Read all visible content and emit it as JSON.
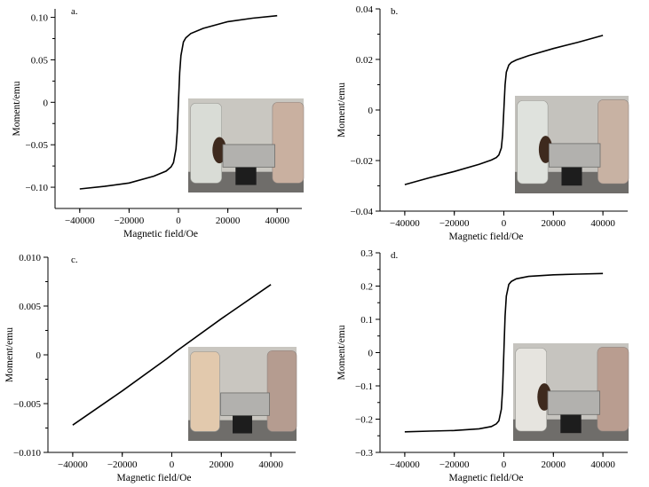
{
  "chart_data": [
    {
      "type": "line",
      "panel_label": "a.",
      "xlabel": "Magnetic field/Oe",
      "ylabel": "Moment/emu",
      "xlim": [
        -50000,
        50000
      ],
      "ylim": [
        -0.125,
        0.11
      ],
      "x_ticks": [
        -40000,
        -20000,
        0,
        20000,
        40000
      ],
      "x_tick_labels": [
        "−40000",
        "−20000",
        "0",
        "20000",
        "40000"
      ],
      "y_ticks": [
        -0.1,
        -0.05,
        0,
        0.05,
        0.1
      ],
      "y_tick_labels": [
        "−0.10",
        "−0.05",
        "0",
        "0.05",
        "0.10"
      ],
      "grid": false,
      "inset": "photo-vials-magnet",
      "series": [
        {
          "x": [
            -40000,
            -30000,
            -20000,
            -10000,
            -5000,
            -3000,
            -2000,
            -1000,
            -500,
            0,
            500,
            1000,
            2000,
            3000,
            5000,
            10000,
            20000,
            30000,
            40000
          ],
          "y": [
            -0.102,
            -0.099,
            -0.095,
            -0.087,
            -0.081,
            -0.076,
            -0.071,
            -0.055,
            -0.035,
            0.0,
            0.035,
            0.055,
            0.071,
            0.076,
            0.081,
            0.087,
            0.095,
            0.099,
            0.102
          ]
        }
      ]
    },
    {
      "type": "line",
      "panel_label": "b.",
      "xlabel": "Magnetic field/Oe",
      "ylabel": "Moment/emu",
      "xlim": [
        -50000,
        50000
      ],
      "ylim": [
        -0.04,
        0.04
      ],
      "x_ticks": [
        -40000,
        -20000,
        0,
        20000,
        40000
      ],
      "x_tick_labels": [
        "−40000",
        "−20000",
        "0",
        "20000",
        "40000"
      ],
      "y_ticks": [
        -0.04,
        -0.02,
        0,
        0.02,
        0.04
      ],
      "y_tick_labels": [
        "−0.04",
        "−0.02",
        "0",
        "0.02",
        "0.04"
      ],
      "grid": false,
      "inset": "photo-vials-magnet",
      "series": [
        {
          "x": [
            -40000,
            -30000,
            -20000,
            -10000,
            -5000,
            -3000,
            -2000,
            -1000,
            -500,
            0,
            500,
            1000,
            2000,
            3000,
            5000,
            10000,
            20000,
            30000,
            40000
          ],
          "y": [
            -0.0295,
            -0.0268,
            -0.0243,
            -0.0215,
            -0.0198,
            -0.0188,
            -0.0178,
            -0.015,
            -0.01,
            0.0,
            0.01,
            0.015,
            0.0178,
            0.0188,
            0.0198,
            0.0215,
            0.0243,
            0.0268,
            0.0295
          ]
        }
      ]
    },
    {
      "type": "line",
      "panel_label": "c.",
      "xlabel": "Magnetic field/Oe",
      "ylabel": "Moment/emu",
      "xlim": [
        -50000,
        50000
      ],
      "ylim": [
        -0.01,
        0.01
      ],
      "x_ticks": [
        -40000,
        -20000,
        0,
        20000,
        40000
      ],
      "x_tick_labels": [
        "−40000",
        "−20000",
        "0",
        "20000",
        "40000"
      ],
      "y_ticks": [
        -0.01,
        -0.005,
        0,
        0.005,
        0.01
      ],
      "y_tick_labels": [
        "−0.010",
        "−0.005",
        "0",
        "0.005",
        "0.010"
      ],
      "grid": false,
      "inset": "photo-vials-magnet",
      "series": [
        {
          "x": [
            -40000,
            -20000,
            -2000,
            0,
            2000,
            20000,
            40000
          ],
          "y": [
            -0.0072,
            -0.0037,
            -0.0004,
            0.0,
            0.0004,
            0.0037,
            0.0072
          ]
        }
      ]
    },
    {
      "type": "line",
      "panel_label": "d.",
      "xlabel": "Magnetic field/Oe",
      "ylabel": "Moment/emu",
      "xlim": [
        -50000,
        50000
      ],
      "ylim": [
        -0.3,
        0.3
      ],
      "x_ticks": [
        -40000,
        -20000,
        0,
        20000,
        40000
      ],
      "x_tick_labels": [
        "−40000",
        "−20000",
        "0",
        "20000",
        "40000"
      ],
      "y_ticks": [
        -0.3,
        -0.2,
        -0.1,
        0,
        0.1,
        0.2,
        0.3
      ],
      "y_tick_labels": [
        "−0.3",
        "−0.2",
        "−0.1",
        "0",
        "0.1",
        "0.2",
        "0.3"
      ],
      "grid": false,
      "inset": "photo-vials-magnet",
      "series": [
        {
          "x": [
            -40000,
            -30000,
            -20000,
            -10000,
            -5000,
            -3000,
            -2000,
            -1000,
            -500,
            0,
            500,
            1000,
            2000,
            3000,
            5000,
            10000,
            20000,
            30000,
            40000
          ],
          "y": [
            -0.238,
            -0.236,
            -0.234,
            -0.229,
            -0.222,
            -0.214,
            -0.205,
            -0.17,
            -0.11,
            0.0,
            0.11,
            0.17,
            0.205,
            0.214,
            0.222,
            0.229,
            0.234,
            0.236,
            0.238
          ]
        }
      ]
    }
  ]
}
